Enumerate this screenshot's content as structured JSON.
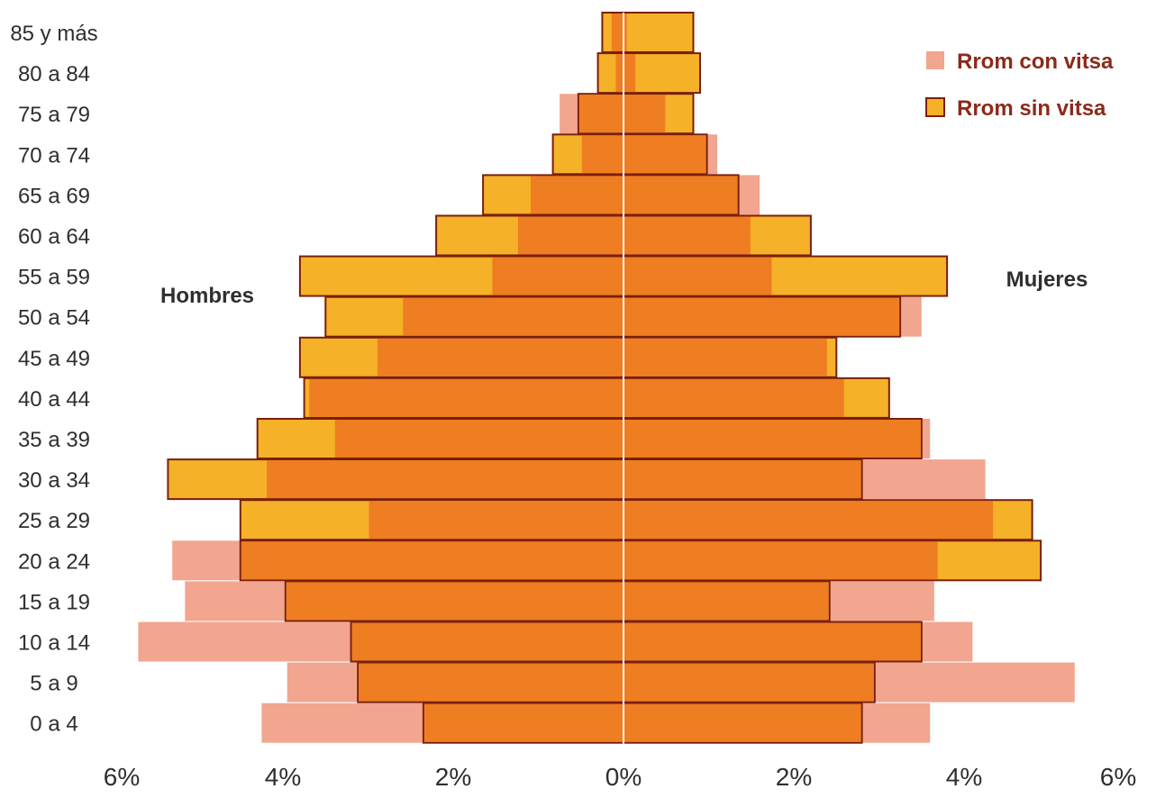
{
  "chart_data": {
    "type": "bar",
    "orientation": "horizontal",
    "layout": "population-pyramid",
    "categories": [
      "85 y más",
      "80 a 84",
      "75 a 79",
      "70 a 74",
      "65 a 69",
      "60 a 64",
      "55 a 59",
      "50 a 54",
      "45 a 49",
      "40 a 44",
      "35 a 39",
      "30 a 34",
      "25 a 29",
      "20 a 24",
      "15 a 19",
      "10 a 14",
      "5 a 9",
      "0 a 4"
    ],
    "x_tick_labels": [
      "6%",
      "4%",
      "2%",
      "0%",
      "2%",
      "4%",
      "6%"
    ],
    "xlim": [
      -6,
      6
    ],
    "side_labels": {
      "left": "Hombres",
      "right": "Mujeres"
    },
    "legend_position": "top-right",
    "series": [
      {
        "name": "Rrom con vitsa",
        "color": "#f2a58f",
        "hombres": [
          0.15,
          0.1,
          0.75,
          0.5,
          1.1,
          1.25,
          1.55,
          2.6,
          2.9,
          3.7,
          3.4,
          4.2,
          3.0,
          5.3,
          5.15,
          5.7,
          3.95,
          4.25
        ],
        "mujeres": [
          0.05,
          0.15,
          0.5,
          1.1,
          1.6,
          1.5,
          1.75,
          3.5,
          2.4,
          2.6,
          3.6,
          4.25,
          4.35,
          3.7,
          3.65,
          4.1,
          5.3,
          3.6
        ]
      },
      {
        "name": "Rrom sin vitsa",
        "color": "#f5b128",
        "hombres": [
          0.25,
          0.3,
          0.53,
          0.83,
          1.65,
          2.2,
          3.8,
          3.5,
          3.8,
          3.75,
          4.3,
          5.35,
          4.5,
          4.5,
          3.97,
          3.2,
          3.12,
          2.35
        ],
        "mujeres": [
          0.82,
          0.9,
          0.82,
          0.98,
          1.35,
          2.2,
          3.8,
          3.25,
          2.5,
          3.12,
          3.5,
          2.8,
          4.8,
          4.9,
          2.42,
          3.5,
          2.95,
          2.8
        ]
      }
    ],
    "overlap_color": "#ef7d22",
    "border_color": "#7a1f0e"
  }
}
